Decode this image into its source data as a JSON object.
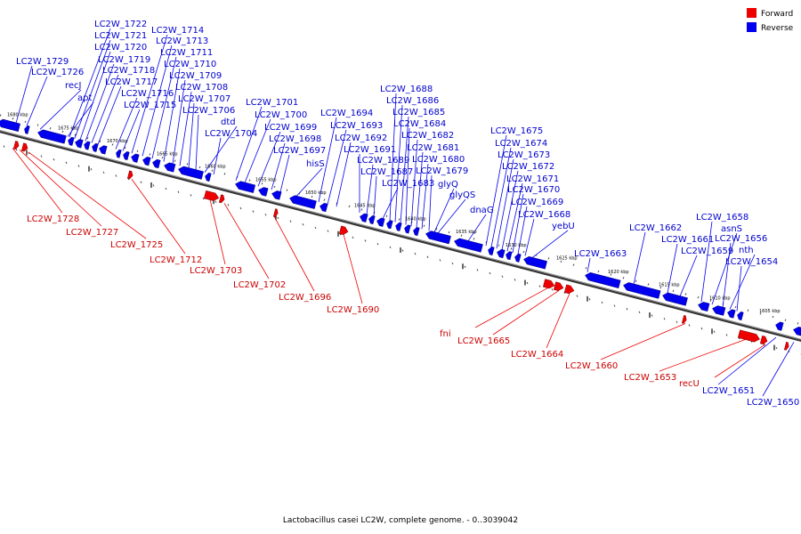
{
  "caption": "Lactobacillus casei LC2W, complete genome. - 0..3039042",
  "legend": [
    {
      "label": "Forward",
      "color": "#ee0000"
    },
    {
      "label": "Reverse",
      "color": "#0000ee"
    }
  ],
  "colors": {
    "forward": "#ee0000",
    "reverse": "#0000ee",
    "forward_label": "#cc0000",
    "reverse_label": "#0000cc",
    "backbone": "#555555"
  },
  "scale_labels": [
    "1680 kbp",
    "1675 kbp",
    "1670 kbp",
    "1665 kbp",
    "1660 kbp",
    "1655 kbp",
    "1650 kbp",
    "1645 kbp",
    "1640 kbp",
    "1635 kbp",
    "1630 kbp",
    "1625 kbp",
    "1620 kbp",
    "1615 kbp",
    "1610 kbp",
    "1605 kbp"
  ],
  "reverse_genes": [
    "LC2W_1722",
    "LC2W_1721",
    "LC2W_1720",
    "LC2W_1719",
    "LC2W_1718",
    "LC2W_1717",
    "LC2W_1716",
    "LC2W_1715",
    "LC2W_1714",
    "LC2W_1713",
    "LC2W_1711",
    "LC2W_1710",
    "LC2W_1709",
    "LC2W_1708",
    "LC2W_1707",
    "LC2W_1706",
    "dtd",
    "LC2W_1704",
    "LC2W_1729",
    "LC2W_1726",
    "recJ",
    "apt",
    "LC2W_1701",
    "LC2W_1700",
    "LC2W_1699",
    "LC2W_1698",
    "LC2W_1697",
    "hisS",
    "LC2W_1694",
    "LC2W_1693",
    "LC2W_1692",
    "LC2W_1691",
    "LC2W_1689",
    "LC2W_1687",
    "LC2W_1683",
    "LC2W_1688",
    "LC2W_1686",
    "LC2W_1685",
    "LC2W_1684",
    "LC2W_1682",
    "LC2W_1681",
    "LC2W_1680",
    "LC2W_1679",
    "glyQ",
    "glyQS",
    "dnaG",
    "LC2W_1675",
    "LC2W_1674",
    "LC2W_1673",
    "LC2W_1672",
    "LC2W_1671",
    "LC2W_1670",
    "LC2W_1669",
    "LC2W_1668",
    "yebU",
    "LC2W_1663",
    "LC2W_1662",
    "LC2W_1661",
    "LC2W_1659",
    "LC2W_1658",
    "asnS",
    "LC2W_1656",
    "nth",
    "LC2W_1654",
    "LC2W_1651",
    "LC2W_1650"
  ],
  "forward_genes": [
    "LC2W_1728",
    "LC2W_1727",
    "LC2W_1725",
    "LC2W_1712",
    "LC2W_1703",
    "LC2W_1702",
    "LC2W_1696",
    "LC2W_1690",
    "fni",
    "LC2W_1665",
    "LC2W_1664",
    "LC2W_1660",
    "LC2W_1653",
    "recU"
  ]
}
